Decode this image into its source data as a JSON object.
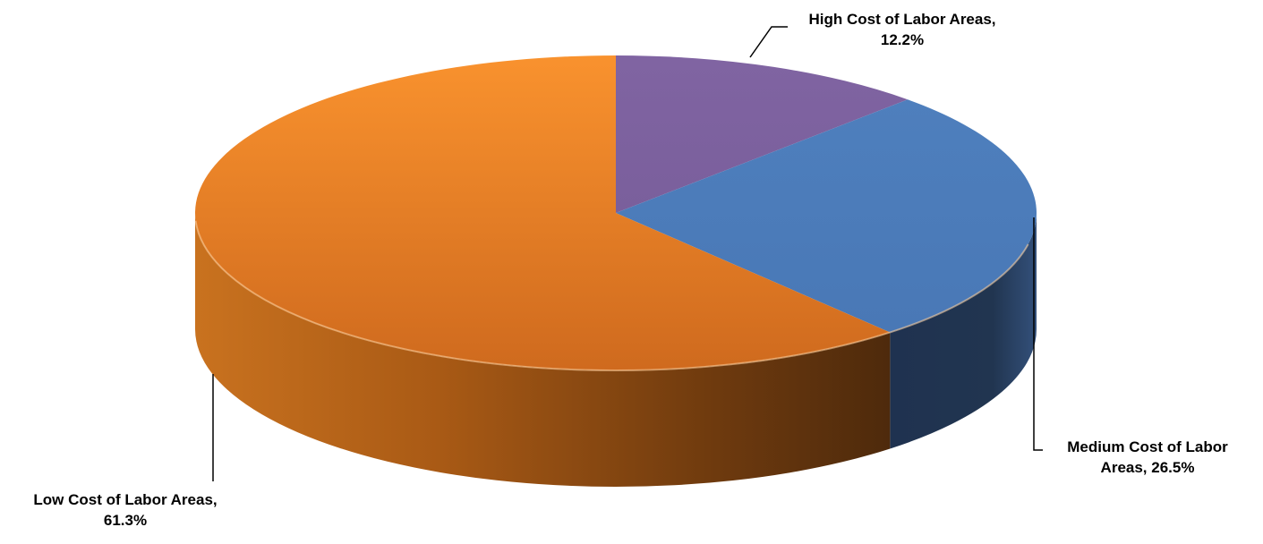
{
  "chart_data": {
    "type": "pie",
    "style": "3d",
    "title": "",
    "legend": "none",
    "slices": [
      {
        "label_lines": [
          "High Cost of Labor Areas,",
          "12.2%"
        ],
        "value": 12.2,
        "color": "#8064A2"
      },
      {
        "label_lines": [
          "Medium Cost of Labor",
          "Areas, 26.5%"
        ],
        "value": 26.5,
        "color": "#4F81BD"
      },
      {
        "label_lines": [
          "Low Cost of Labor Areas,",
          "61.3%"
        ],
        "value": 61.3,
        "color": "#F79646"
      }
    ]
  }
}
